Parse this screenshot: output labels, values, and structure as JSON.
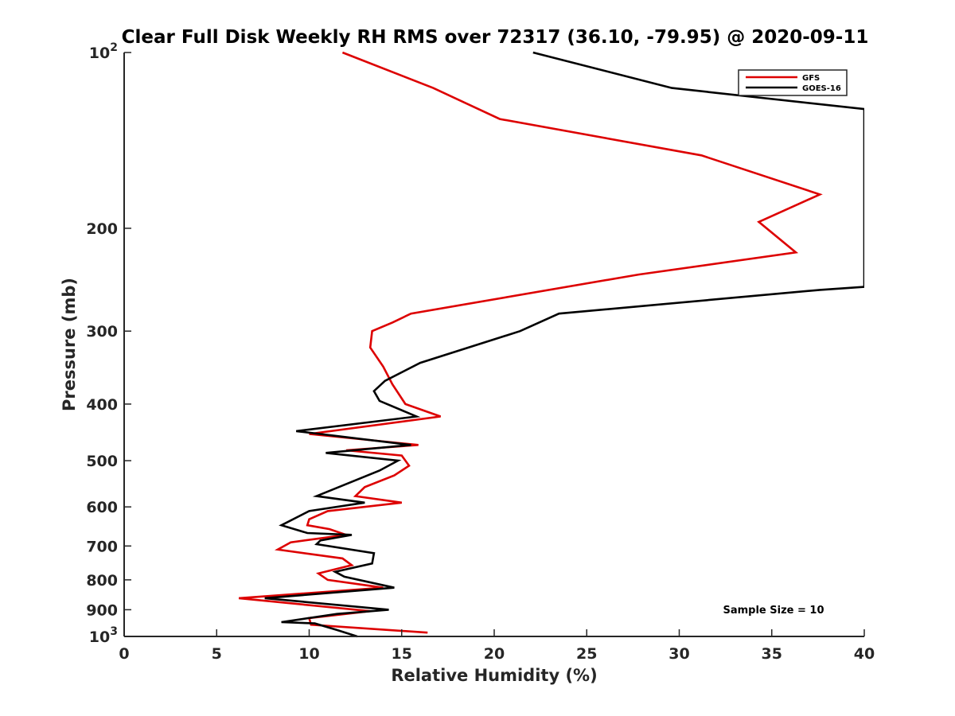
{
  "chart_data": {
    "type": "line",
    "title": "Clear Full Disk Weekly RH RMS over 72317 (36.10, -79.95) @ 2020-09-11",
    "xlabel": "Relative Humidity (%)",
    "ylabel": "Pressure (mb)",
    "xlim": [
      0,
      40
    ],
    "ylim": [
      100,
      1000
    ],
    "y_scale": "log",
    "y_reversed": true,
    "x_ticks": [
      0,
      5,
      10,
      15,
      20,
      25,
      30,
      35,
      40
    ],
    "x_tick_labels": [
      "0",
      "5",
      "10",
      "15",
      "20",
      "25",
      "30",
      "35",
      "40"
    ],
    "y_ticks": [
      100,
      200,
      300,
      400,
      500,
      600,
      700,
      800,
      900,
      1000
    ],
    "y_tick_labels": [
      {
        "base": "10",
        "exp": "2"
      },
      {
        "text": "200"
      },
      {
        "text": "300"
      },
      {
        "text": "400"
      },
      {
        "text": "500"
      },
      {
        "text": "600"
      },
      {
        "text": "700"
      },
      {
        "text": "800"
      },
      {
        "text": "900"
      },
      {
        "base": "10",
        "exp": "3"
      }
    ],
    "grid": false,
    "legend_position": "top-right",
    "annotation": "Sample Size = 10",
    "series": [
      {
        "name": "GFS",
        "color": "#dd0000",
        "points": [
          [
            11.8,
            100
          ],
          [
            16.7,
            115
          ],
          [
            20.3,
            130
          ],
          [
            31.2,
            150
          ],
          [
            37.6,
            175
          ],
          [
            34.3,
            195
          ],
          [
            36.3,
            220
          ],
          [
            27.8,
            240
          ],
          [
            15.5,
            280
          ],
          [
            14.5,
            290
          ],
          [
            13.4,
            300
          ],
          [
            13.3,
            320
          ],
          [
            14.0,
            345
          ],
          [
            14.5,
            370
          ],
          [
            15.2,
            400
          ],
          [
            17.1,
            420
          ],
          [
            10.0,
            450
          ],
          [
            15.9,
            470
          ],
          [
            12.0,
            480
          ],
          [
            15.0,
            490
          ],
          [
            15.4,
            510
          ],
          [
            14.6,
            530
          ],
          [
            13.0,
            555
          ],
          [
            12.5,
            575
          ],
          [
            15.0,
            590
          ],
          [
            11.0,
            610
          ],
          [
            10.0,
            630
          ],
          [
            9.9,
            645
          ],
          [
            11.1,
            655
          ],
          [
            12.0,
            670
          ],
          [
            9.0,
            690
          ],
          [
            8.3,
            710
          ],
          [
            11.8,
            735
          ],
          [
            12.3,
            755
          ],
          [
            10.5,
            780
          ],
          [
            11.0,
            800
          ],
          [
            14.0,
            825
          ],
          [
            6.2,
            860
          ],
          [
            13.3,
            905
          ],
          [
            10.0,
            930
          ],
          [
            10.1,
            955
          ],
          [
            16.4,
            985
          ]
        ]
      },
      {
        "name": "GOES-16",
        "color": "#000000",
        "points": [
          [
            22.1,
            100
          ],
          [
            29.6,
            115
          ],
          [
            40.0,
            125
          ],
          [
            40.0,
            252
          ],
          [
            37.6,
            255
          ],
          [
            23.5,
            280
          ],
          [
            21.4,
            300
          ],
          [
            16.0,
            340
          ],
          [
            14.1,
            365
          ],
          [
            13.5,
            380
          ],
          [
            13.8,
            395
          ],
          [
            15.8,
            420
          ],
          [
            9.3,
            445
          ],
          [
            15.5,
            470
          ],
          [
            10.9,
            485
          ],
          [
            14.8,
            500
          ],
          [
            13.8,
            520
          ],
          [
            10.4,
            575
          ],
          [
            13.0,
            590
          ],
          [
            10.0,
            610
          ],
          [
            8.5,
            645
          ],
          [
            9.9,
            665
          ],
          [
            12.3,
            670
          ],
          [
            10.6,
            685
          ],
          [
            10.4,
            695
          ],
          [
            13.5,
            720
          ],
          [
            13.4,
            750
          ],
          [
            11.4,
            775
          ],
          [
            11.9,
            790
          ],
          [
            14.6,
            825
          ],
          [
            7.6,
            860
          ],
          [
            14.3,
            900
          ],
          [
            11.5,
            915
          ],
          [
            8.5,
            945
          ],
          [
            10.3,
            950
          ],
          [
            11.5,
            975
          ],
          [
            12.6,
            1000
          ]
        ]
      }
    ]
  }
}
